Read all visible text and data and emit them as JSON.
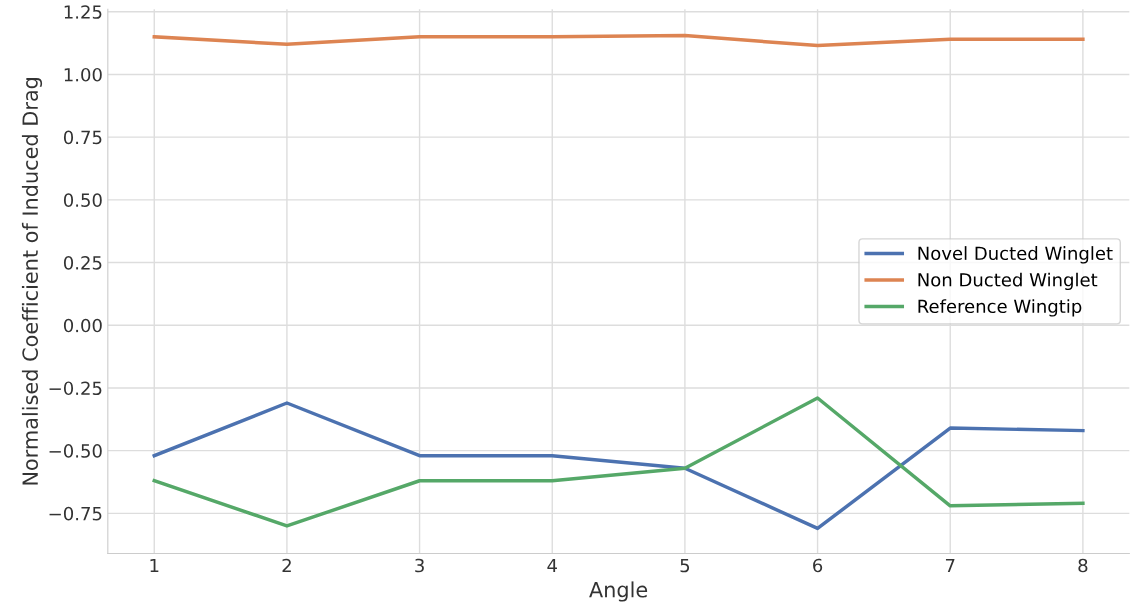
{
  "chart_data": {
    "type": "line",
    "xlabel": "Angle",
    "ylabel": "Normalised Coefficient of Induced Drag",
    "x": [
      1,
      2,
      3,
      4,
      5,
      6,
      7,
      8
    ],
    "series": [
      {
        "name": "Novel Ducted Winglet",
        "color": "#4c72b0",
        "values": [
          -0.52,
          -0.31,
          -0.52,
          -0.52,
          -0.57,
          -0.81,
          -0.41,
          -0.42
        ]
      },
      {
        "name": "Non Ducted Winglet",
        "color": "#dd8452",
        "values": [
          1.15,
          1.12,
          1.15,
          1.15,
          1.155,
          1.115,
          1.14,
          1.14
        ]
      },
      {
        "name": "Reference Wingtip",
        "color": "#55a868",
        "values": [
          -0.62,
          -0.8,
          -0.62,
          -0.62,
          -0.57,
          -0.29,
          -0.72,
          -0.71
        ]
      }
    ],
    "xlim": [
      0.65,
      8.35
    ],
    "ylim": [
      -0.91,
      1.26
    ],
    "xticks": [
      1,
      2,
      3,
      4,
      5,
      6,
      7,
      8
    ],
    "yticks": [
      {
        "value": -0.75,
        "label": "−0.75"
      },
      {
        "value": -0.5,
        "label": "−0.50"
      },
      {
        "value": -0.25,
        "label": "−0.25"
      },
      {
        "value": 0,
        "label": "0.00"
      },
      {
        "value": 0.25,
        "label": "0.25"
      },
      {
        "value": 0.5,
        "label": "0.50"
      },
      {
        "value": 0.75,
        "label": "0.75"
      },
      {
        "value": 1.0,
        "label": "1.00"
      },
      {
        "value": 1.25,
        "label": "1.25"
      }
    ],
    "grid": true,
    "legend": "center right",
    "marker": "none",
    "line_style": "solid"
  }
}
